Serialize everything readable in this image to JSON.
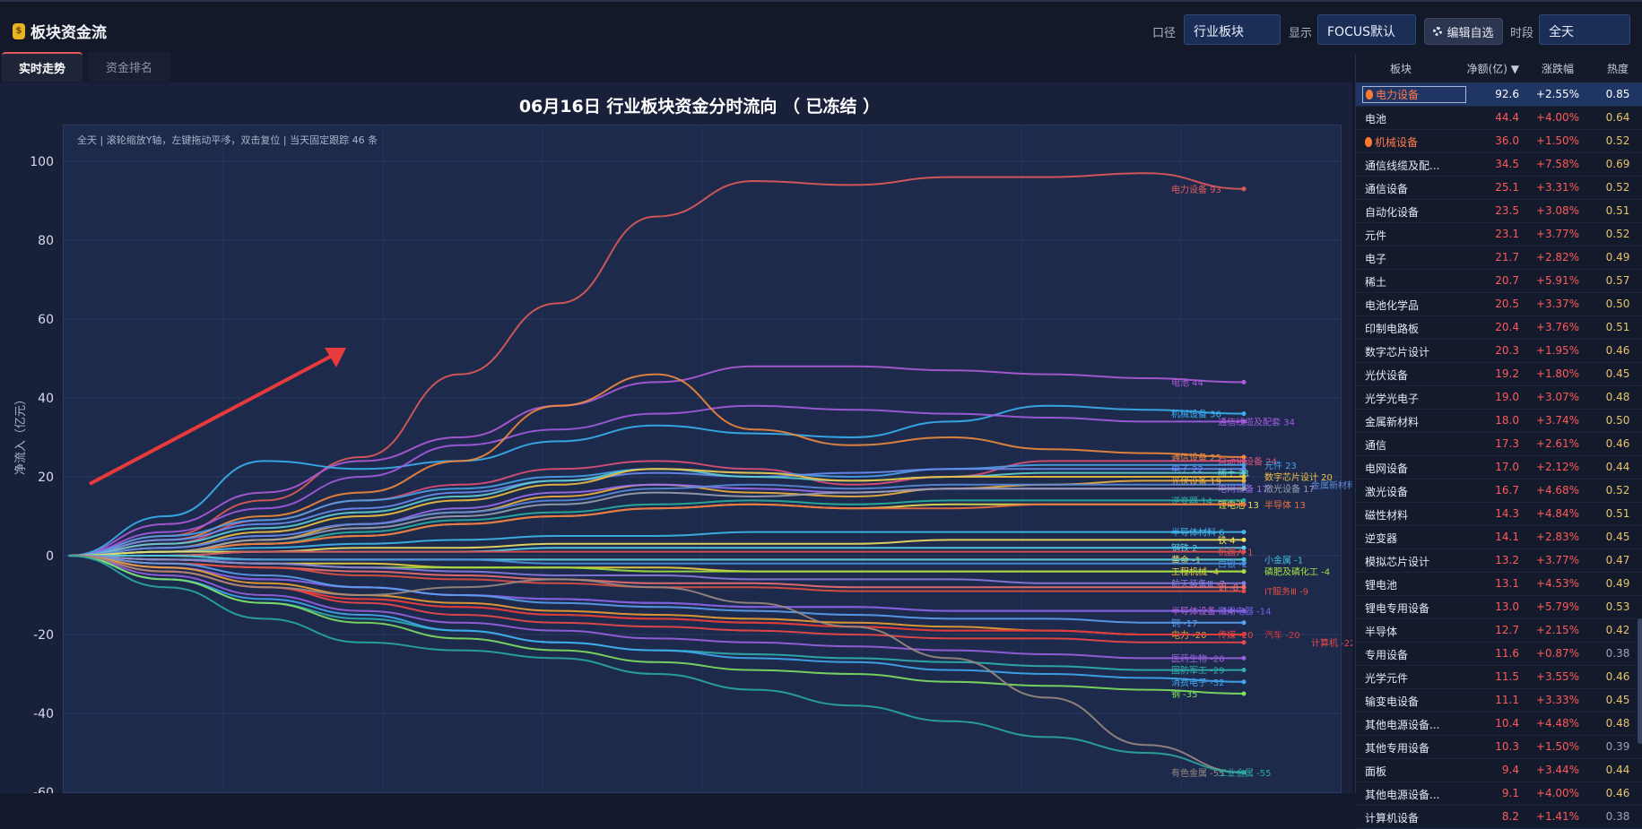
{
  "app": {
    "title": "板块资金流",
    "icon": "money-bag-icon"
  },
  "controls": {
    "caliber_label": "口径",
    "caliber_value": "行业板块",
    "display_label": "显示",
    "display_value": "FOCUS默认",
    "edit_label": "编辑自选",
    "period_label": "时段",
    "period_value": "全天"
  },
  "tabs": [
    "实时走势",
    "资金排名"
  ],
  "chart": {
    "title": "06月16日 行业板块资金分时流向 （ 已冻结 ）",
    "note": "全天 | 滚轮缩放Y轴，左键拖动平移，双击复位 | 当天固定跟踪 46 条",
    "ylabel": "净流入（亿元）"
  },
  "chart_data": {
    "type": "line",
    "title": "06月16日 行业板块资金分时流向 （ 已冻结 ）",
    "ylabel": "净流入（亿元）",
    "ylim": [
      -60,
      110
    ],
    "yticks": [
      100,
      80,
      60,
      40,
      20,
      0,
      -20,
      -40,
      -60
    ],
    "grid": true,
    "series": [
      {
        "name": "电力设备",
        "color": "#e05a5a",
        "values": [
          0,
          5,
          14,
          25,
          46,
          64,
          86,
          95,
          94,
          96,
          96,
          97,
          93
        ]
      },
      {
        "name": "电池",
        "color": "#b05ad8",
        "values": [
          0,
          8,
          16,
          24,
          30,
          38,
          44,
          48,
          48,
          47,
          46,
          45,
          44
        ]
      },
      {
        "name": "机械设备",
        "color": "#3ab0f0",
        "values": [
          0,
          10,
          24,
          22,
          24,
          29,
          33,
          31,
          30,
          34,
          38,
          37,
          36
        ]
      },
      {
        "name": "通信线缆及配套",
        "color": "#a55be0",
        "values": [
          0,
          6,
          12,
          20,
          28,
          32,
          36,
          38,
          37,
          36,
          35,
          34,
          34
        ]
      },
      {
        "name": "通信设备",
        "color": "#f08a3c",
        "values": [
          0,
          4,
          10,
          16,
          24,
          38,
          46,
          32,
          28,
          30,
          27,
          26,
          25
        ]
      },
      {
        "name": "自动化设备",
        "color": "#e0507a",
        "values": [
          0,
          3,
          9,
          14,
          18,
          22,
          24,
          22,
          18,
          20,
          24,
          24,
          24
        ]
      },
      {
        "name": "元件",
        "color": "#4aa0e8",
        "values": [
          0,
          5,
          9,
          14,
          17,
          20,
          22,
          21,
          20,
          22,
          23,
          23,
          23
        ]
      },
      {
        "name": "电子",
        "color": "#6a8df0",
        "values": [
          0,
          4,
          8,
          12,
          16,
          19,
          21,
          20,
          21,
          22,
          22,
          22,
          22
        ]
      },
      {
        "name": "稀土",
        "color": "#5fd0d0",
        "values": [
          0,
          3,
          7,
          11,
          15,
          19,
          22,
          20,
          19,
          20,
          21,
          21,
          21
        ]
      },
      {
        "name": "数字芯片设计",
        "color": "#f0c040",
        "values": [
          0,
          2,
          6,
          10,
          14,
          18,
          22,
          21,
          19,
          20,
          20,
          20,
          20
        ]
      },
      {
        "name": "光伏设备",
        "color": "#f0b040",
        "values": [
          0,
          1,
          4,
          8,
          11,
          15,
          18,
          16,
          15,
          17,
          18,
          19,
          19
        ]
      },
      {
        "name": "电网设备",
        "color": "#9a6ef0",
        "values": [
          0,
          2,
          5,
          8,
          12,
          16,
          18,
          17,
          16,
          17,
          17,
          17,
          17
        ]
      },
      {
        "name": "金属新材料",
        "color": "#5a8ad8",
        "values": [
          0,
          2,
          5,
          8,
          11,
          14,
          17,
          18,
          17,
          18,
          18,
          18,
          18
        ]
      },
      {
        "name": "激光设备",
        "color": "#9aa0b0",
        "values": [
          0,
          1,
          4,
          7,
          10,
          13,
          16,
          15,
          16,
          17,
          17,
          17,
          17
        ]
      },
      {
        "name": "逆变器",
        "color": "#2ab0a0",
        "values": [
          0,
          1,
          3,
          6,
          9,
          11,
          13,
          14,
          13,
          14,
          14,
          14,
          14
        ]
      },
      {
        "name": "锂电池",
        "color": "#e8e050",
        "values": [
          0,
          1,
          3,
          5,
          8,
          10,
          12,
          13,
          12,
          13,
          13,
          13,
          13
        ]
      },
      {
        "name": "半导体",
        "color": "#f07040",
        "values": [
          0,
          1,
          3,
          5,
          8,
          10,
          12,
          13,
          12,
          12,
          13,
          13,
          13
        ]
      },
      {
        "name": "半导体材料",
        "color": "#40b8f0",
        "values": [
          0,
          1,
          2,
          3,
          4,
          5,
          5,
          6,
          6,
          6,
          6,
          6,
          6
        ]
      },
      {
        "name": "铁",
        "color": "#f0e060",
        "values": [
          0,
          1,
          1,
          2,
          2,
          3,
          3,
          3,
          3,
          4,
          4,
          4,
          4
        ]
      },
      {
        "name": "钢铁",
        "color": "#5ad0f0",
        "values": [
          0,
          0,
          1,
          1,
          1,
          2,
          2,
          2,
          2,
          2,
          2,
          2,
          2
        ]
      },
      {
        "name": "机器人",
        "color": "#e05050",
        "values": [
          0,
          0,
          1,
          1,
          1,
          1,
          1,
          1,
          1,
          1,
          1,
          1,
          1
        ]
      },
      {
        "name": "黄金",
        "color": "#ffe060",
        "values": [
          0,
          0,
          -1,
          -1,
          -1,
          -1,
          -1,
          -1,
          -1,
          -1,
          -1,
          -1,
          -1
        ]
      },
      {
        "name": "小金属",
        "color": "#40c0e0",
        "values": [
          0,
          0,
          -1,
          -1,
          -1,
          -1,
          -1,
          -1,
          -1,
          -1,
          -1,
          -1,
          -1
        ]
      },
      {
        "name": "白银",
        "color": "#4a90e0",
        "values": [
          0,
          -1,
          -1,
          -1,
          -1,
          -2,
          -2,
          -2,
          -2,
          -2,
          -2,
          -2,
          -2
        ]
      },
      {
        "name": "工程机械",
        "color": "#f0d040",
        "values": [
          0,
          -1,
          -2,
          -2,
          -3,
          -3,
          -3,
          -4,
          -4,
          -4,
          -4,
          -4,
          -4
        ]
      },
      {
        "name": "磷肥及磷化工",
        "color": "#a0e040",
        "values": [
          0,
          -1,
          -2,
          -3,
          -3,
          -3,
          -4,
          -4,
          -4,
          -4,
          -4,
          -4,
          -4
        ]
      },
      {
        "name": "航天装备Ⅲ",
        "color": "#8a7ae0",
        "values": [
          0,
          -1,
          -2,
          -3,
          -4,
          -5,
          -5,
          -6,
          -6,
          -6,
          -7,
          -7,
          -7
        ]
      },
      {
        "name": "铝",
        "color": "#f07070",
        "values": [
          0,
          -2,
          -3,
          -4,
          -5,
          -6,
          -7,
          -7,
          -8,
          -8,
          -8,
          -8,
          -8
        ]
      },
      {
        "name": "IT服务Ⅲ",
        "color": "#e05040",
        "values": [
          0,
          -2,
          -3,
          -5,
          -6,
          -7,
          -8,
          -8,
          -9,
          -9,
          -9,
          -9,
          -9
        ]
      },
      {
        "name": "半导体设备",
        "color": "#c060e0",
        "values": [
          0,
          -3,
          -6,
          -8,
          -10,
          -11,
          -12,
          -13,
          -13,
          -14,
          -14,
          -14,
          -14
        ]
      },
      {
        "name": "家用电器",
        "color": "#7a60e0",
        "values": [
          0,
          -3,
          -6,
          -8,
          -10,
          -11,
          -12,
          -13,
          -13,
          -14,
          -14,
          -14,
          -14
        ]
      },
      {
        "name": "铜",
        "color": "#5aa0f0",
        "values": [
          0,
          -2,
          -5,
          -8,
          -10,
          -12,
          -13,
          -14,
          -15,
          -16,
          -16,
          -17,
          -17
        ]
      },
      {
        "name": "电力",
        "color": "#f0a030",
        "values": [
          0,
          -3,
          -7,
          -10,
          -12,
          -14,
          -15,
          -16,
          -17,
          -18,
          -19,
          -20,
          -20
        ]
      },
      {
        "name": "传媒",
        "color": "#e04a4a",
        "values": [
          0,
          -4,
          -8,
          -11,
          -13,
          -15,
          -16,
          -17,
          -18,
          -19,
          -19,
          -20,
          -20
        ]
      },
      {
        "name": "汽车",
        "color": "#e03a3a",
        "values": [
          0,
          -4,
          -8,
          -11,
          -13,
          -15,
          -16,
          -17,
          -18,
          -19,
          -19,
          -20,
          -20
        ]
      },
      {
        "name": "计算机",
        "color": "#f04848",
        "values": [
          0,
          -4,
          -8,
          -12,
          -15,
          -17,
          -18,
          -19,
          -20,
          -21,
          -21,
          -22,
          -22
        ]
      },
      {
        "name": "医药生物",
        "color": "#9a60e0",
        "values": [
          0,
          -5,
          -10,
          -14,
          -17,
          -19,
          -21,
          -22,
          -23,
          -24,
          -25,
          -26,
          -26
        ]
      },
      {
        "name": "国防军工",
        "color": "#30b0b0",
        "values": [
          0,
          -6,
          -12,
          -16,
          -19,
          -22,
          -24,
          -25,
          -26,
          -27,
          -28,
          -29,
          -29
        ]
      },
      {
        "name": "消费电子",
        "color": "#40a8f0",
        "values": [
          0,
          -6,
          -11,
          -15,
          -19,
          -22,
          -24,
          -26,
          -27,
          -29,
          -30,
          -31,
          -32
        ]
      },
      {
        "name": "钢",
        "color": "#80e060",
        "values": [
          0,
          -6,
          -12,
          -17,
          -21,
          -24,
          -27,
          -29,
          -30,
          -32,
          -33,
          -34,
          -35
        ]
      },
      {
        "name": "有色金属",
        "color": "#9a8a80",
        "values": [
          0,
          -4,
          -8,
          -10,
          -8,
          -6,
          -8,
          -12,
          -18,
          -26,
          -36,
          -48,
          -55
        ]
      },
      {
        "name": "工业金属",
        "color": "#2aa8a0",
        "values": [
          0,
          -8,
          -16,
          -22,
          -24,
          -26,
          -30,
          -34,
          -38,
          -42,
          -46,
          -50,
          -55
        ]
      }
    ]
  },
  "sidebar": {
    "columns": [
      "板块",
      "净额(亿)",
      "涨跌幅",
      "热度"
    ],
    "sort_indicator": "▼",
    "rows": [
      {
        "name": "电力设备",
        "net": "92.6",
        "pct": "+2.55%",
        "heat": "0.85",
        "hot": true,
        "selected": true
      },
      {
        "name": "电池",
        "net": "44.4",
        "pct": "+4.00%",
        "heat": "0.64"
      },
      {
        "name": "机械设备",
        "net": "36.0",
        "pct": "+1.50%",
        "heat": "0.52",
        "hot": true
      },
      {
        "name": "通信线缆及配...",
        "net": "34.5",
        "pct": "+7.58%",
        "heat": "0.69"
      },
      {
        "name": "通信设备",
        "net": "25.1",
        "pct": "+3.31%",
        "heat": "0.52"
      },
      {
        "name": "自动化设备",
        "net": "23.5",
        "pct": "+3.08%",
        "heat": "0.51"
      },
      {
        "name": "元件",
        "net": "23.1",
        "pct": "+3.77%",
        "heat": "0.52"
      },
      {
        "name": "电子",
        "net": "21.7",
        "pct": "+2.82%",
        "heat": "0.49"
      },
      {
        "name": "稀土",
        "net": "20.7",
        "pct": "+5.91%",
        "heat": "0.57"
      },
      {
        "name": "电池化学品",
        "net": "20.5",
        "pct": "+3.37%",
        "heat": "0.50"
      },
      {
        "name": "印制电路板",
        "net": "20.4",
        "pct": "+3.76%",
        "heat": "0.51"
      },
      {
        "name": "数字芯片设计",
        "net": "20.3",
        "pct": "+1.95%",
        "heat": "0.46"
      },
      {
        "name": "光伏设备",
        "net": "19.2",
        "pct": "+1.80%",
        "heat": "0.45"
      },
      {
        "name": "光学光电子",
        "net": "19.0",
        "pct": "+3.07%",
        "heat": "0.48"
      },
      {
        "name": "金属新材料",
        "net": "18.0",
        "pct": "+3.74%",
        "heat": "0.50"
      },
      {
        "name": "通信",
        "net": "17.3",
        "pct": "+2.61%",
        "heat": "0.46"
      },
      {
        "name": "电网设备",
        "net": "17.0",
        "pct": "+2.12%",
        "heat": "0.44"
      },
      {
        "name": "激光设备",
        "net": "16.7",
        "pct": "+4.68%",
        "heat": "0.52"
      },
      {
        "name": "磁性材料",
        "net": "14.3",
        "pct": "+4.84%",
        "heat": "0.51"
      },
      {
        "name": "逆变器",
        "net": "14.1",
        "pct": "+2.83%",
        "heat": "0.45"
      },
      {
        "name": "模拟芯片设计",
        "net": "13.2",
        "pct": "+3.77%",
        "heat": "0.47"
      },
      {
        "name": "锂电池",
        "net": "13.1",
        "pct": "+4.53%",
        "heat": "0.49"
      },
      {
        "name": "锂电专用设备",
        "net": "13.0",
        "pct": "+5.79%",
        "heat": "0.53"
      },
      {
        "name": "半导体",
        "net": "12.7",
        "pct": "+2.15%",
        "heat": "0.42"
      },
      {
        "name": "专用设备",
        "net": "11.6",
        "pct": "+0.87%",
        "heat": "0.38",
        "lowheat": true
      },
      {
        "name": "光学元件",
        "net": "11.5",
        "pct": "+3.55%",
        "heat": "0.46"
      },
      {
        "name": "输变电设备",
        "net": "11.1",
        "pct": "+3.33%",
        "heat": "0.45"
      },
      {
        "name": "其他电源设备...",
        "net": "10.4",
        "pct": "+4.48%",
        "heat": "0.48"
      },
      {
        "name": "其他专用设备",
        "net": "10.3",
        "pct": "+1.50%",
        "heat": "0.39",
        "lowheat": true
      },
      {
        "name": "面板",
        "net": "9.4",
        "pct": "+3.44%",
        "heat": "0.44"
      },
      {
        "name": "其他电源设备...",
        "net": "9.1",
        "pct": "+4.00%",
        "heat": "0.46"
      },
      {
        "name": "计算机设备",
        "net": "8.2",
        "pct": "+1.41%",
        "heat": "0.38",
        "lowheat": true
      }
    ]
  }
}
